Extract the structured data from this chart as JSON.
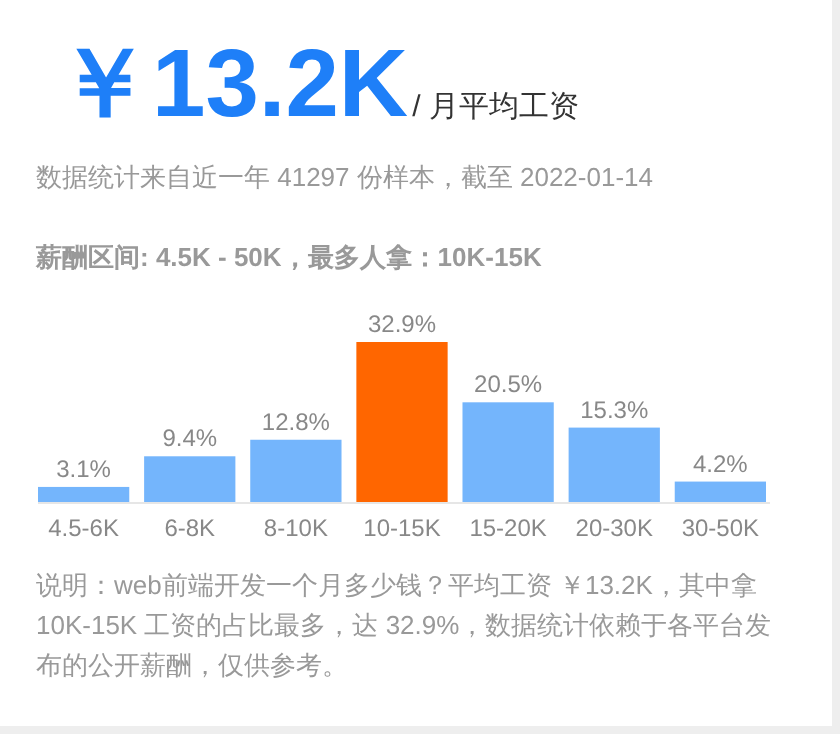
{
  "chart_data": {
    "type": "bar",
    "title": "￥13.2K",
    "subtitle": "/ 月平均工资",
    "annotations": [
      "数据统计来自近一年 41297 份样本，截至 2022-01-14",
      "薪酬区间: 4.5K - 50K，最多人拿：10K-15K",
      "说明：web前端开发一个月多少钱？平均工资 ￥13.2K，其中拿 10K-15K 工资的占比最多，达 32.9%，数据统计依赖于各平台发布的公开薪酬，仅供参考。"
    ],
    "categories": [
      "4.5-6K",
      "6-8K",
      "8-10K",
      "10-15K",
      "15-20K",
      "20-30K",
      "30-50K"
    ],
    "values": [
      3.1,
      9.4,
      12.8,
      32.9,
      20.5,
      15.3,
      4.2
    ],
    "colors": [
      "#74b5fc",
      "#74b5fc",
      "#74b5fc",
      "#ff6600",
      "#74b5fc",
      "#74b5fc",
      "#74b5fc"
    ],
    "value_labels": [
      "3.1%",
      "9.4%",
      "12.8%",
      "32.9%",
      "20.5%",
      "15.3%",
      "4.2%"
    ]
  }
}
